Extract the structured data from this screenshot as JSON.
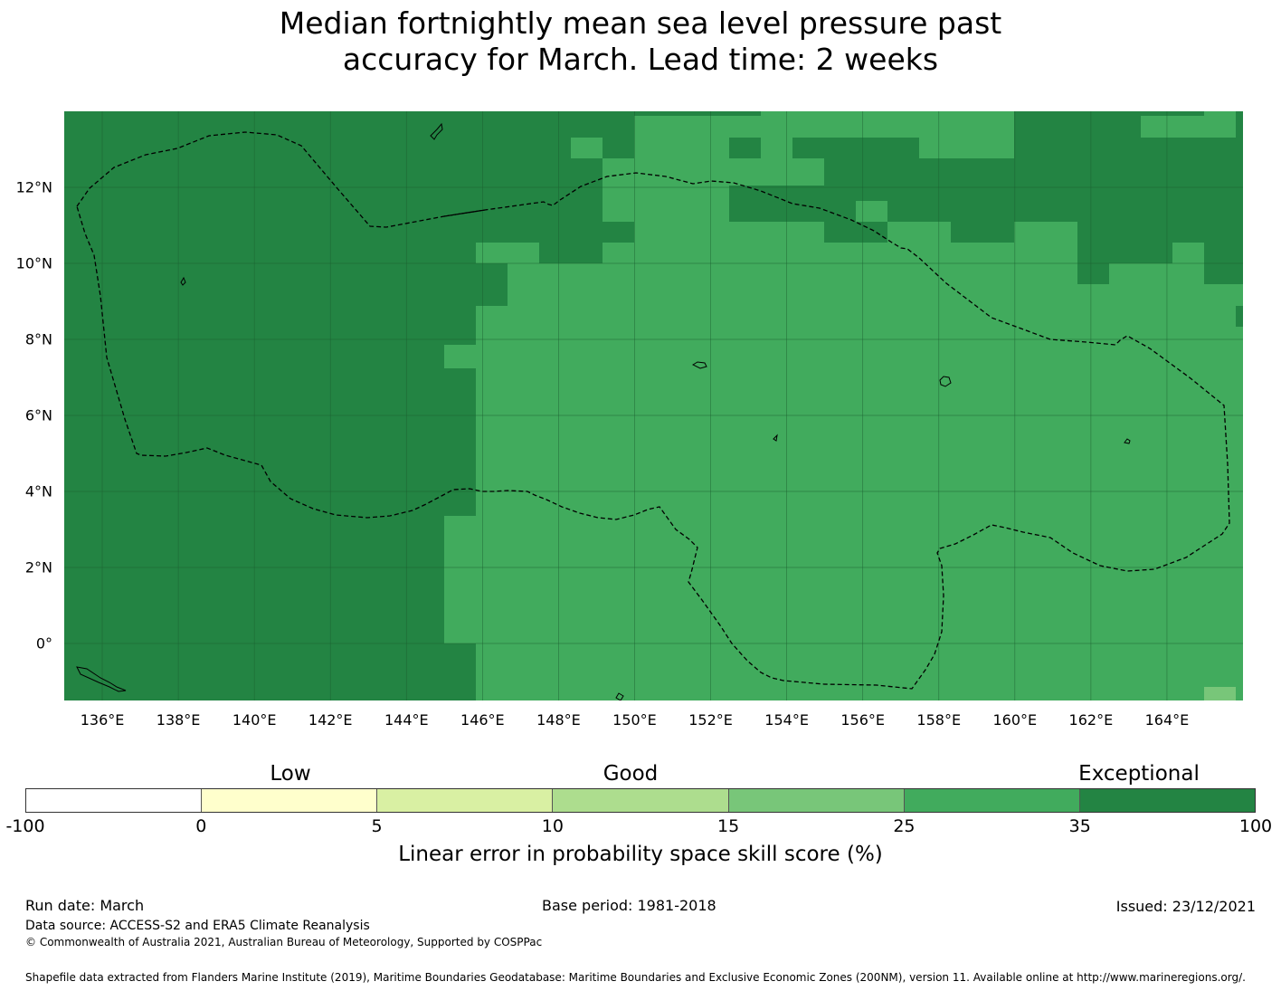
{
  "title": {
    "line1": "Median fortnightly mean sea level pressure past",
    "line2": "accuracy for March. Lead time: 2 weeks"
  },
  "map": {
    "lon_labels": [
      "136°E",
      "138°E",
      "140°E",
      "142°E",
      "144°E",
      "146°E",
      "148°E",
      "150°E",
      "152°E",
      "154°E",
      "156°E",
      "158°E",
      "160°E",
      "162°E",
      "164°E"
    ],
    "lat_labels": [
      "12°N",
      "10°N",
      "8°N",
      "6°N",
      "4°N",
      "2°N",
      "0°"
    ],
    "lon_range": [
      135.0,
      166.0
    ],
    "lat_range": [
      -1.5,
      14.0
    ],
    "cell_deg": 0.833,
    "regions_exceptional_note": "Exceptional (35-100) over west and north; Good/high (25-35) over central/east",
    "colors": {
      "exceptional": "#238443",
      "high": "#41ab5d",
      "good": "#78c679",
      "grid": "#1a5c2e",
      "boundary": "#000000"
    }
  },
  "legend": {
    "categories": [
      "Low",
      "Good",
      "Exceptional"
    ],
    "ticks": [
      "-100",
      "0",
      "5",
      "10",
      "15",
      "25",
      "35",
      "100"
    ],
    "colors": [
      "#ffffff",
      "#ffffcc",
      "#d9f0a3",
      "#addd8e",
      "#78c679",
      "#41ab5d",
      "#238443"
    ],
    "axis_label": "Linear error in probability space skill score (%)"
  },
  "footer": {
    "run_date": "Run date: March",
    "base_period": "Base period: 1981-2018",
    "issued": "Issued: 23/12/2021",
    "data_source": "Data source: ACCESS-S2 and ERA5 Climate Reanalysis",
    "copyright": "© Commonwealth of Australia 2021, Australian Bureau of Meteorology, Supported by COSPPac",
    "shapefile": "Shapefile data extracted from Flanders Marine Institute (2019), Maritime Boundaries Geodatabase: Maritime Boundaries and Exclusive Economic Zones (200NM), version 11. Available online at http://www.marineregions.org/."
  }
}
